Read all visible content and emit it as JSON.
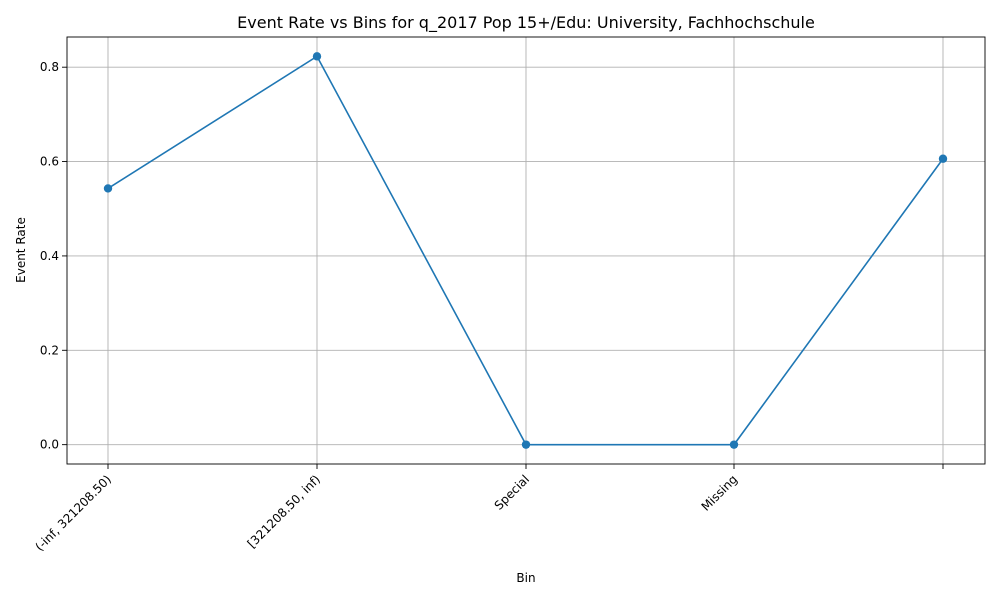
{
  "chart_data": {
    "type": "line",
    "title": "Event Rate vs Bins for q_2017 Pop 15+/Edu: University, Fachhochschule",
    "xlabel": "Bin",
    "ylabel": "Event Rate",
    "categories": [
      "(-inf, 321208.50)",
      "[321208.50, inf)",
      "Special",
      "Missing",
      ""
    ],
    "series": [
      {
        "values": [
          0.543,
          0.823,
          0.0,
          0.0,
          0.606
        ]
      }
    ],
    "yticks": [
      0.0,
      0.2,
      0.4,
      0.6,
      0.8
    ],
    "ytick_labels": [
      "0.0",
      "0.2",
      "0.4",
      "0.6",
      "0.8"
    ],
    "ylim": [
      -0.041,
      0.864
    ],
    "grid": true,
    "marker": "circle",
    "colors": {
      "series": "#1f77b4"
    }
  }
}
